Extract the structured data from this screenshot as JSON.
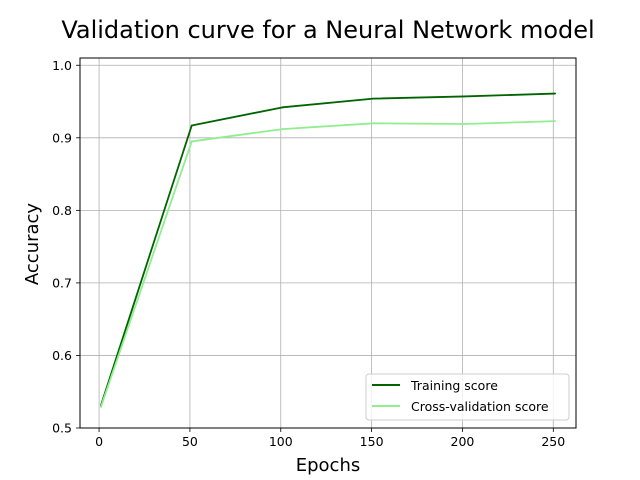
{
  "chart_data": {
    "type": "line",
    "title": "Validation curve for a Neural Network model",
    "xlabel": "Epochs",
    "ylabel": "Accuracy",
    "x": [
      1,
      51,
      101,
      151,
      201,
      251
    ],
    "xlim": [
      -10.5,
      262.5
    ],
    "ylim": [
      0.5,
      1.01
    ],
    "xticks": [
      0,
      50,
      100,
      150,
      200,
      250
    ],
    "xtick_labels": [
      "0",
      "50",
      "100",
      "150",
      "200",
      "250"
    ],
    "yticks": [
      0.5,
      0.6,
      0.7,
      0.8,
      0.9,
      1.0
    ],
    "ytick_labels": [
      "0.5",
      "0.6",
      "0.7",
      "0.8",
      "0.9",
      "1.0"
    ],
    "grid": true,
    "legend_position": "lower-right",
    "series": [
      {
        "name": "Training score",
        "color": "#006400",
        "values": [
          0.531,
          0.917,
          0.942,
          0.954,
          0.957,
          0.961
        ]
      },
      {
        "name": "Cross-validation score",
        "color": "#90ee90",
        "values": [
          0.529,
          0.895,
          0.912,
          0.92,
          0.919,
          0.923
        ]
      }
    ]
  }
}
